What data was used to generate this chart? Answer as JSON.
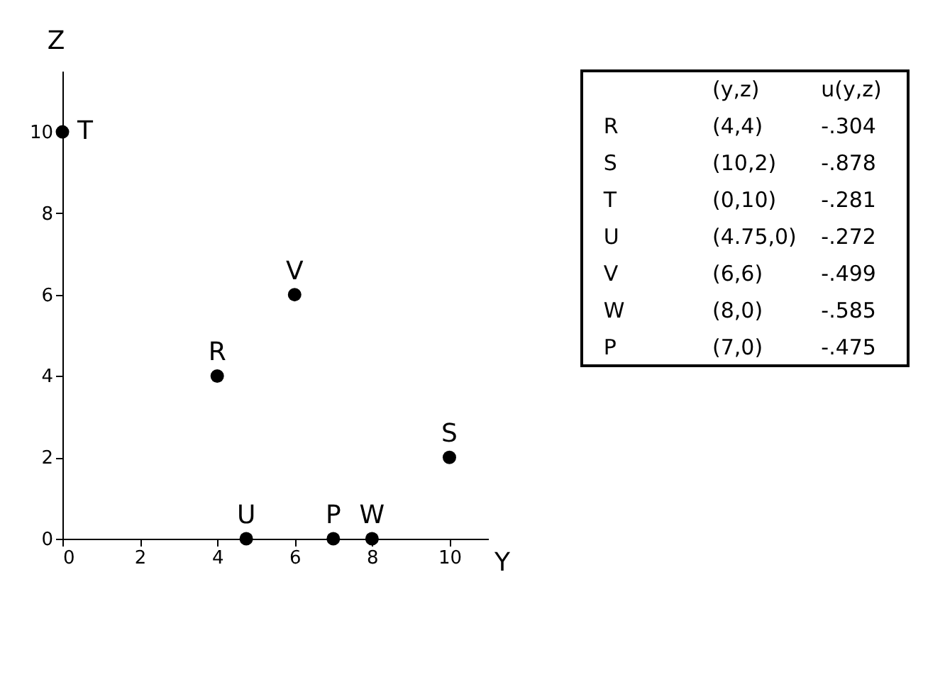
{
  "chart_data": [
    {
      "type": "scatter",
      "xlabel": "Y",
      "ylabel": "Z",
      "x": [
        0,
        4,
        6,
        4.75,
        7,
        8,
        10
      ],
      "values": [
        10,
        4,
        6,
        0,
        0,
        0,
        2
      ],
      "color": "#000000",
      "marker": "circle",
      "grid": false,
      "xlim": [
        0,
        11
      ],
      "ylim": [
        0,
        11.5
      ],
      "xticks": [
        0,
        2,
        4,
        6,
        8,
        10
      ],
      "yticks": [
        0,
        2,
        4,
        6,
        8,
        10
      ],
      "annotations": [
        {
          "text": "T",
          "x": 0,
          "y": 10
        },
        {
          "text": "R",
          "x": 4,
          "y": 4
        },
        {
          "text": "V",
          "x": 6,
          "y": 6
        },
        {
          "text": "U",
          "x": 4.75,
          "y": 0
        },
        {
          "text": "P",
          "x": 7,
          "y": 0
        },
        {
          "text": "W",
          "x": 8,
          "y": 0
        },
        {
          "text": "S",
          "x": 10,
          "y": 2
        }
      ]
    },
    {
      "type": "other",
      "annotations": [
        "(y,z)",
        "u(y,z)",
        "R",
        "(4,4)",
        "-.304",
        "S",
        "(10,2)",
        "-.878",
        "T",
        "(0,10)",
        "-.281",
        "U",
        "(4.75,0)",
        "-.272",
        "V",
        "(6,6)",
        "-.499",
        "W",
        "(8,0)",
        "-.585",
        "P",
        "(7,0)",
        "-.475"
      ]
    }
  ]
}
